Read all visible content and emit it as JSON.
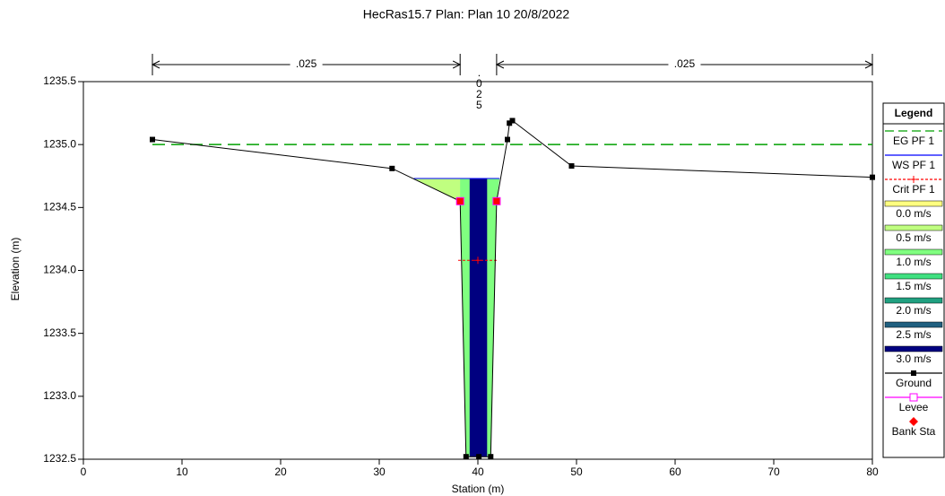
{
  "chart_data": {
    "type": "cross_section",
    "title": "HecRas15.7      Plan: Plan 10    20/8/2022",
    "xlabel": "Station (m)",
    "ylabel": "Elevation (m)",
    "xlim": [
      0,
      80
    ],
    "ylim": [
      1232.5,
      1235.5
    ],
    "xticks": [
      0,
      10,
      20,
      30,
      40,
      50,
      60,
      70,
      80
    ],
    "yticks": [
      1232.5,
      1233.0,
      1233.5,
      1234.0,
      1234.5,
      1235.0,
      1235.5
    ],
    "manning_n": [
      ".025",
      ".025",
      ".025"
    ],
    "ground": {
      "name": "Ground",
      "color": "#000000",
      "x": [
        7,
        31.3,
        38.2,
        38.8,
        40.1,
        41.3,
        41.9,
        43.0,
        43.2,
        43.5,
        49.5,
        80
      ],
      "y": [
        1235.04,
        1234.81,
        1234.55,
        1232.52,
        1232.52,
        1232.52,
        1234.55,
        1235.04,
        1235.17,
        1235.19,
        1234.83,
        1234.74
      ]
    },
    "bank_stations": [
      2,
      6
    ],
    "eg": {
      "name": "EG PF 1",
      "color": "#00a000",
      "value": 1235.0
    },
    "ws": {
      "name": "WS PF 1",
      "color": "#0000ff",
      "value": 1234.73,
      "x": [
        33.5,
        42.2
      ]
    },
    "crit": {
      "name": "Crit PF 1",
      "color": "#ff0000",
      "value": 1234.08,
      "x": [
        38.0,
        42.0
      ]
    },
    "legend_title": "Legend",
    "velocity_legend": [
      {
        "name": "0.0 m/s",
        "color": "#ffff80"
      },
      {
        "name": "0.5 m/s",
        "color": "#c0ff80"
      },
      {
        "name": "1.0 m/s",
        "color": "#80ff80"
      },
      {
        "name": "1.5 m/s",
        "color": "#40e080"
      },
      {
        "name": "2.0 m/s",
        "color": "#20a080"
      },
      {
        "name": "2.5 m/s",
        "color": "#206080"
      },
      {
        "name": "3.0 m/s",
        "color": "#000080"
      }
    ],
    "levee": {
      "name": "Levee",
      "color": "#ff00ff"
    },
    "bank_sta": {
      "name": "Bank Sta",
      "color": "#ff0000"
    }
  }
}
